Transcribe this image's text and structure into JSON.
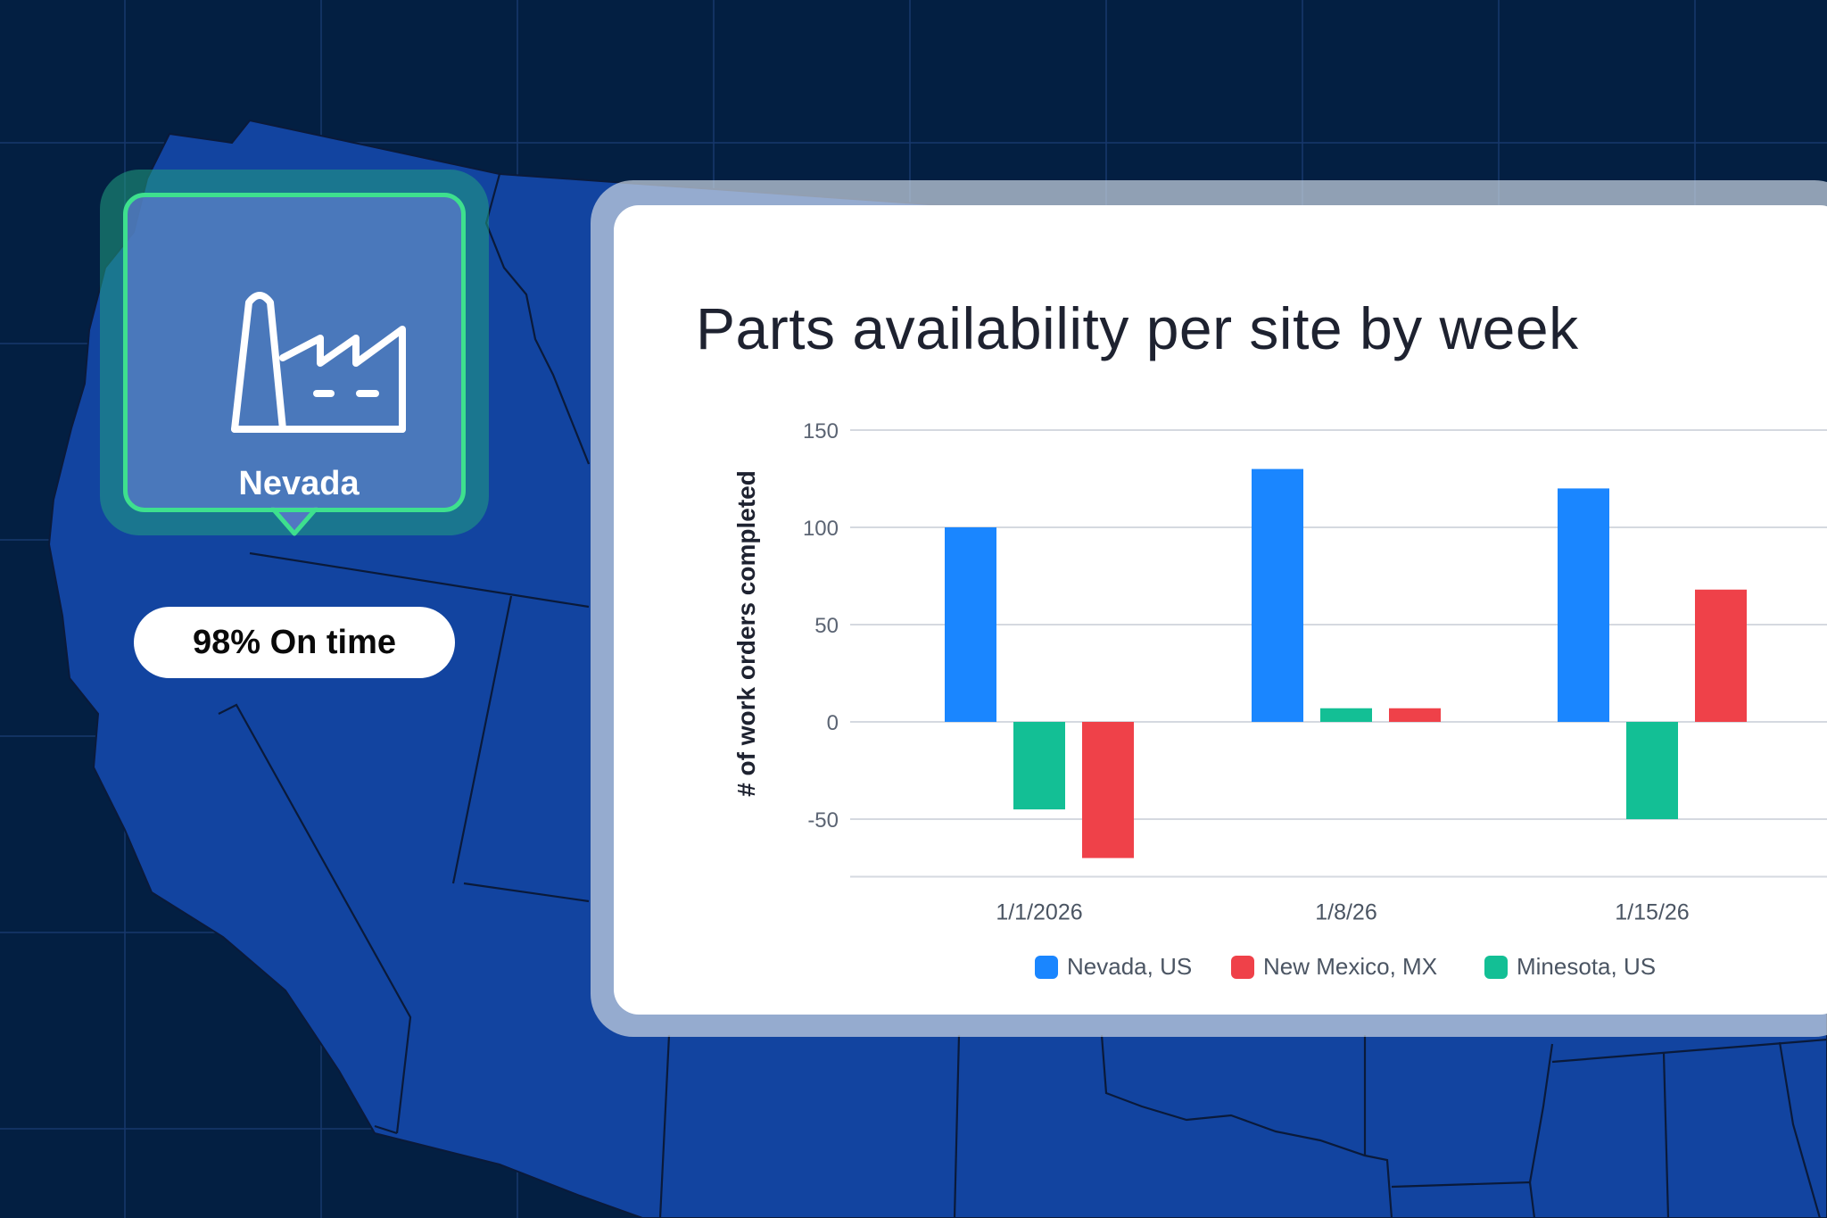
{
  "marker": {
    "site_label": "Nevada",
    "status_text": "98% On time",
    "icon": "factory-icon",
    "accent_color": "#3ee08e"
  },
  "colors": {
    "background": "#031f42",
    "land": "#1244a0",
    "nevada": "#1a86ff",
    "new_mexico": "#ef4149",
    "minesota": "#13bf95"
  },
  "chart_data": {
    "type": "bar",
    "title": "Parts availability per site by week",
    "ylabel": "# of work orders completed",
    "xlabel": "",
    "ylim": [
      -75,
      150
    ],
    "yticks": [
      150,
      100,
      50,
      0,
      -50
    ],
    "grid": true,
    "legend_position": "bottom",
    "categories": [
      "1/1/2026",
      "1/8/26",
      "1/15/26"
    ],
    "series": [
      {
        "name": "Nevada, US",
        "color": "#1a86ff",
        "values": [
          100,
          130,
          120
        ]
      },
      {
        "name": "Minesota, US",
        "color": "#13bf95",
        "values": [
          -45,
          7,
          -50
        ]
      },
      {
        "name": "New Mexico, MX",
        "color": "#ef4149",
        "values": [
          -70,
          7,
          68
        ]
      }
    ],
    "legend": [
      "Nevada, US",
      "New Mexico, MX",
      "Minesota, US"
    ]
  }
}
